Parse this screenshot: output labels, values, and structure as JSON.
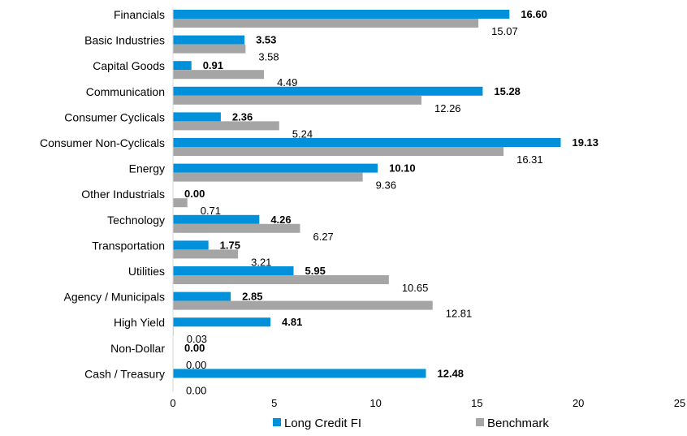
{
  "chart_data": {
    "type": "bar",
    "orientation": "horizontal",
    "categories": [
      "Financials",
      "Basic Industries",
      "Capital Goods",
      "Communication",
      "Consumer Cyclicals",
      "Consumer Non-Cyclicals",
      "Energy",
      "Other Industrials",
      "Technology",
      "Transportation",
      "Utilities",
      "Agency / Municipals",
      "High Yield",
      "Non-Dollar",
      "Cash / Treasury"
    ],
    "series": [
      {
        "name": "Long Credit FI",
        "color": "#0091DA",
        "values": [
          16.6,
          3.53,
          0.91,
          15.28,
          2.36,
          19.13,
          10.1,
          0.0,
          4.26,
          1.75,
          5.95,
          2.85,
          4.81,
          0.0,
          12.48
        ],
        "labels": [
          "16.60",
          "3.53",
          "0.91",
          "15.28",
          "2.36",
          "19.13",
          "10.10",
          "0.00",
          "4.26",
          "1.75",
          "5.95",
          "2.85",
          "4.81",
          "0.00",
          "12.48"
        ]
      },
      {
        "name": "Benchmark",
        "color": "#A5A5A5",
        "values": [
          15.07,
          3.58,
          4.49,
          12.26,
          5.24,
          16.31,
          9.36,
          0.71,
          6.27,
          3.21,
          10.65,
          12.81,
          0.03,
          0.0,
          0.0
        ],
        "labels": [
          "15.07",
          "3.58",
          "4.49",
          "12.26",
          "5.24",
          "16.31",
          "9.36",
          "0.71",
          "6.27",
          "3.21",
          "10.65",
          "12.81",
          "0.03",
          "0.00",
          "0.00"
        ]
      }
    ],
    "xlim": [
      0,
      25
    ],
    "xticks": [
      "0",
      "5",
      "10",
      "15",
      "20",
      "25"
    ],
    "grid": false,
    "legend_position": "bottom"
  }
}
